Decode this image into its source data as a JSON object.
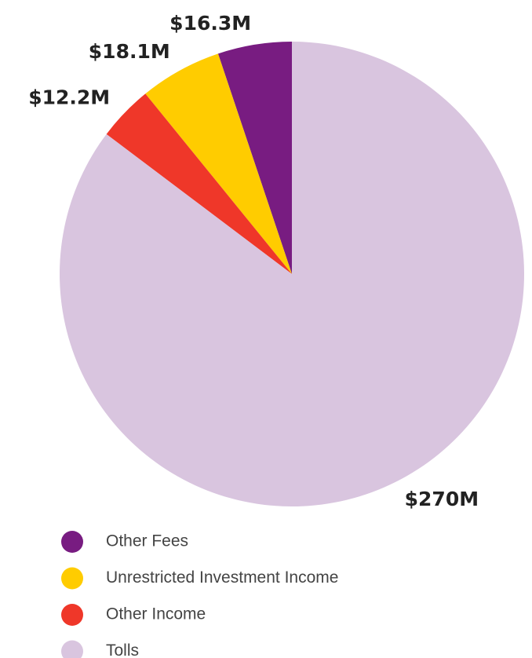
{
  "chart_data": {
    "type": "pie",
    "series": [
      {
        "name": "Other Fees",
        "color": "#781c81",
        "values": [
          16.3
        ],
        "value_labels": [
          "$16.3M"
        ]
      },
      {
        "name": "Unrestricted Investment Income",
        "color": "#ffcc00",
        "values": [
          18.1
        ],
        "value_labels": [
          "$18.1M"
        ]
      },
      {
        "name": "Other Income",
        "color": "#ef3729",
        "values": [
          12.2
        ],
        "value_labels": [
          "$12.2M"
        ]
      },
      {
        "name": "Tolls",
        "color": "#d9c5df",
        "values": [
          270
        ],
        "value_labels": [
          "$270M"
        ]
      }
    ]
  }
}
